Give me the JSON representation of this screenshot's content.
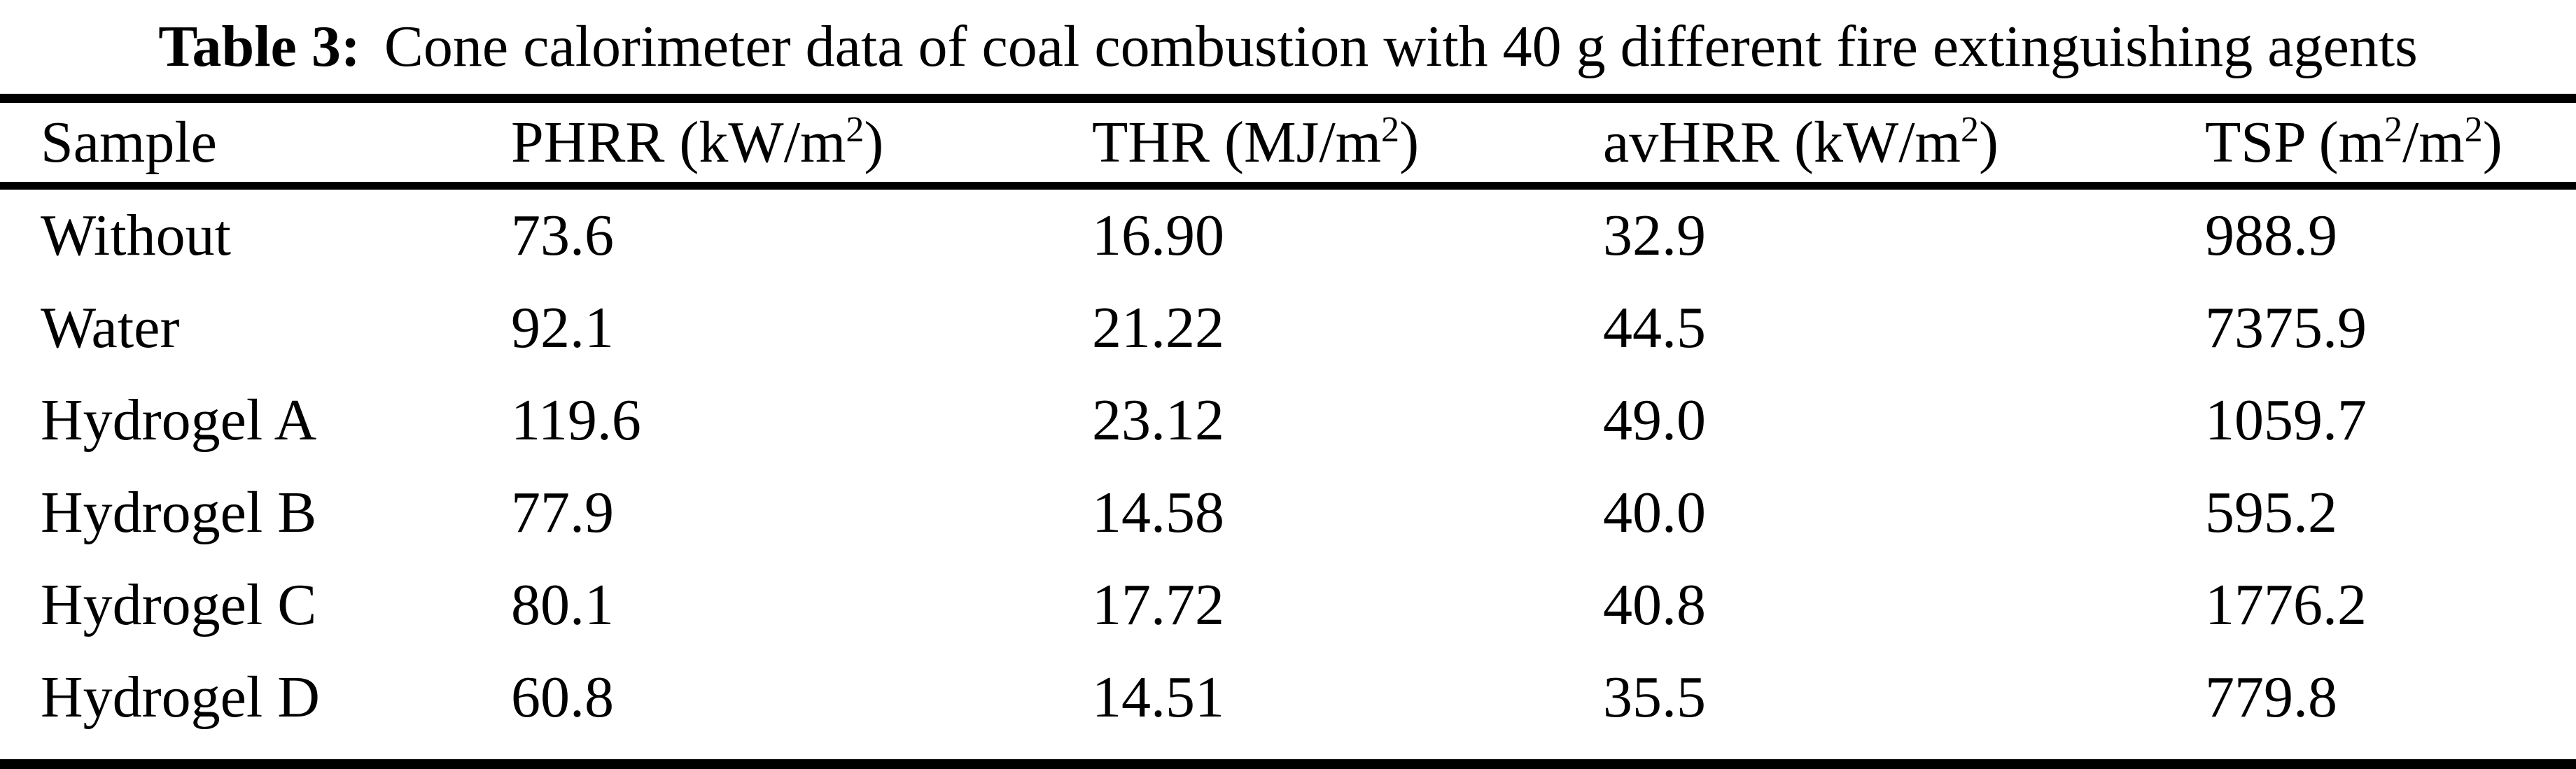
{
  "page": {
    "background_color": "#ffffff",
    "text_color": "#000000",
    "rule_color": "#000000"
  },
  "caption": {
    "label": "Table 3:",
    "text": "Cone calorimeter data of coal combustion with 40 g different fire extinguishing agents"
  },
  "table": {
    "columns": [
      {
        "label": "Sample",
        "segments": [
          {
            "t": "Sample"
          }
        ]
      },
      {
        "label": "PHRR (kW/m²)",
        "segments": [
          {
            "t": "PHRR (kW/m"
          },
          {
            "s": "2"
          },
          {
            "t": ")"
          }
        ]
      },
      {
        "label": "THR (MJ/m²)",
        "segments": [
          {
            "t": "THR (MJ/m"
          },
          {
            "s": "2"
          },
          {
            "t": ")"
          }
        ]
      },
      {
        "label": "avHRR (kW/m²)",
        "segments": [
          {
            "t": "avHRR (kW/m"
          },
          {
            "s": "2"
          },
          {
            "t": ")"
          }
        ]
      },
      {
        "label": "TSP (m²/m²)",
        "segments": [
          {
            "t": "TSP (m"
          },
          {
            "s": "2"
          },
          {
            "t": "/m"
          },
          {
            "s": "2"
          },
          {
            "t": ")"
          }
        ]
      }
    ],
    "rows": [
      {
        "cells": [
          "Without",
          "73.6",
          "16.90",
          "32.9",
          "988.9"
        ]
      },
      {
        "cells": [
          "Water",
          "92.1",
          "21.22",
          "44.5",
          "7375.9"
        ]
      },
      {
        "cells": [
          "Hydrogel A",
          "119.6",
          "23.12",
          "49.0",
          "1059.7"
        ]
      },
      {
        "cells": [
          "Hydrogel B",
          "77.9",
          "14.58",
          "40.0",
          "595.2"
        ]
      },
      {
        "cells": [
          "Hydrogel C",
          "80.1",
          "17.72",
          "40.8",
          "1776.2"
        ]
      },
      {
        "cells": [
          "Hydrogel D",
          "60.8",
          "14.51",
          "35.5",
          "779.8"
        ]
      }
    ]
  }
}
